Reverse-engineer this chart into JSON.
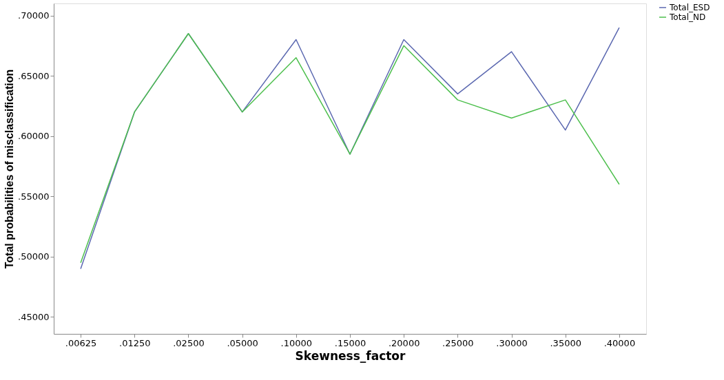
{
  "chart_data": {
    "type": "line",
    "xlabel": "Skewness_factor",
    "ylabel": "Total probabilities of misclassification",
    "categories": [
      ".00625",
      ".01250",
      ".02500",
      ".05000",
      ".10000",
      ".15000",
      ".20000",
      ".25000",
      ".30000",
      ".35000",
      ".40000"
    ],
    "series": [
      {
        "name": "Total_ESD",
        "color": "#5b68b0",
        "values": [
          0.49,
          0.62,
          0.685,
          0.62,
          0.68,
          0.585,
          0.68,
          0.635,
          0.67,
          0.605,
          0.69
        ]
      },
      {
        "name": "Total_ND",
        "color": "#4cbf4c",
        "values": [
          0.495,
          0.62,
          0.685,
          0.62,
          0.665,
          0.585,
          0.675,
          0.63,
          0.615,
          0.63,
          0.56
        ]
      }
    ],
    "ylim": [
      0.436,
      0.71
    ],
    "yticks": [
      {
        "value": 0.45,
        "label": ".45000"
      },
      {
        "value": 0.5,
        "label": ".50000"
      },
      {
        "value": 0.55,
        "label": ".55000"
      },
      {
        "value": 0.6,
        "label": ".60000"
      },
      {
        "value": 0.65,
        "label": ".65000"
      },
      {
        "value": 0.7,
        "label": ".70000"
      }
    ],
    "legend": "top right",
    "grid": false,
    "marker": "none",
    "line_style": "solid"
  }
}
